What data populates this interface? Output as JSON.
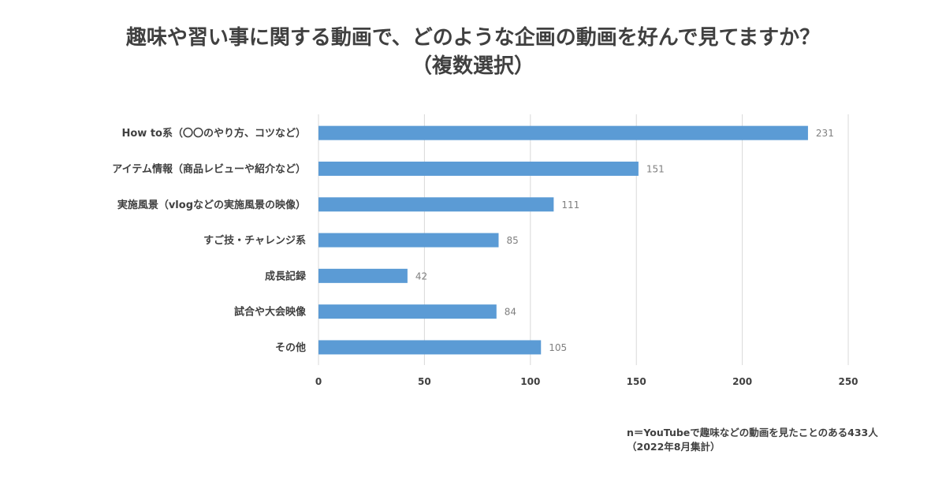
{
  "title": {
    "line1": "趣味や習い事に関する動画で、どのような企画の動画を好んで見てますか？",
    "line2": "（複数選択）"
  },
  "footnote": {
    "line1": "n＝YouTubeで趣味などの動画を見たことのある433人",
    "line2": "（2022年8月集計）"
  },
  "chart_data": {
    "type": "bar",
    "orientation": "horizontal",
    "categories": [
      "How to系（〇〇のやり方、コツなど）",
      "アイテム情報（商品レビューや紹介など）",
      "実施風景（vlogなどの実施風景の映像）",
      "すご技・チャレンジ系",
      "成長記録",
      "試合や大会映像",
      "その他"
    ],
    "values": [
      231,
      151,
      111,
      85,
      42,
      84,
      105
    ],
    "xlim": [
      0,
      250
    ],
    "xticks": [
      "0",
      "50",
      "100",
      "150",
      "200",
      "250"
    ],
    "xtick_values": [
      0,
      50,
      100,
      150,
      200,
      250
    ],
    "grid": true,
    "data_labels": true,
    "colors": {
      "bar": "#5b9bd5",
      "grid": "#d9d9d9",
      "value_label": "#7f7f7f"
    }
  }
}
